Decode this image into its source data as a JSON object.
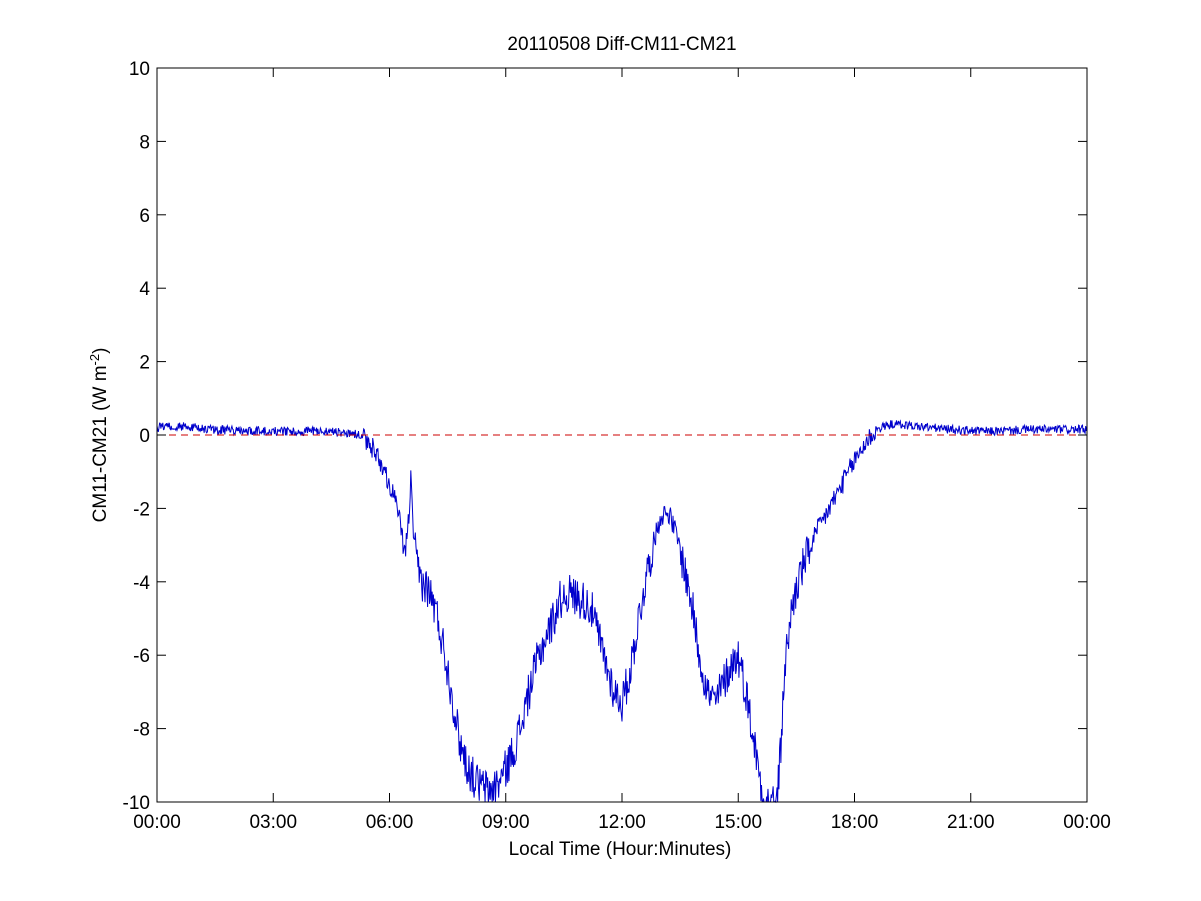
{
  "chart_data": {
    "type": "line",
    "title": "20110508 Diff-CM11-CM21",
    "xlabel": "Local Time (Hour:Minutes)",
    "ylabel": {
      "prefix": "CM11-CM21 (W m",
      "exponent": "-2",
      "suffix": ")"
    },
    "xlim": [
      0,
      24
    ],
    "ylim": [
      -10,
      10
    ],
    "x_units": "hours of local time",
    "xticks": [
      0,
      3,
      6,
      9,
      12,
      15,
      18,
      21,
      24
    ],
    "xtick_labels": [
      "00:00",
      "03:00",
      "06:00",
      "09:00",
      "12:00",
      "15:00",
      "18:00",
      "21:00",
      "00:00"
    ],
    "yticks": [
      -10,
      -8,
      -6,
      -4,
      -2,
      0,
      2,
      4,
      6,
      8,
      10
    ],
    "ytick_labels": [
      "-10",
      "-8",
      "-6",
      "-4",
      "-2",
      "0",
      "2",
      "4",
      "6",
      "8",
      "10"
    ],
    "grid": false,
    "box": true,
    "series": [
      {
        "color": "#0000cc",
        "style": "solid",
        "x": [
          0.0,
          0.5,
          1.0,
          1.5,
          2.0,
          2.5,
          3.0,
          3.5,
          4.0,
          4.5,
          5.0,
          5.2,
          5.4,
          5.6,
          5.8,
          6.0,
          6.1,
          6.2,
          6.3,
          6.4,
          6.5,
          6.55,
          6.6,
          6.7,
          6.8,
          6.9,
          7.0,
          7.2,
          7.4,
          7.6,
          7.8,
          8.0,
          8.2,
          8.4,
          8.6,
          8.8,
          9.0,
          9.2,
          9.4,
          9.6,
          9.8,
          10.0,
          10.2,
          10.4,
          10.6,
          10.8,
          11.0,
          11.2,
          11.4,
          11.6,
          11.8,
          12.0,
          12.2,
          12.4,
          12.6,
          12.8,
          13.0,
          13.2,
          13.4,
          13.6,
          13.8,
          14.0,
          14.2,
          14.4,
          14.6,
          14.8,
          15.0,
          15.2,
          15.4,
          15.6,
          15.7,
          15.8,
          15.9,
          16.0,
          16.1,
          16.2,
          16.4,
          16.6,
          16.8,
          17.0,
          17.2,
          17.4,
          17.6,
          17.8,
          18.0,
          18.2,
          18.4,
          18.6,
          18.8,
          19.0,
          19.5,
          20.0,
          20.5,
          21.0,
          21.5,
          22.0,
          22.5,
          23.0,
          23.5,
          24.0
        ],
        "y": [
          0.2,
          0.25,
          0.2,
          0.15,
          0.12,
          0.12,
          0.1,
          0.1,
          0.1,
          0.1,
          0.05,
          0.0,
          -0.2,
          -0.4,
          -0.8,
          -1.3,
          -1.6,
          -2.0,
          -2.6,
          -3.3,
          -2.2,
          -1.2,
          -2.4,
          -3.6,
          -3.9,
          -4.1,
          -4.2,
          -4.8,
          -5.8,
          -7.0,
          -8.3,
          -9.0,
          -9.4,
          -9.6,
          -9.7,
          -9.5,
          -9.1,
          -8.6,
          -7.9,
          -7.0,
          -6.2,
          -5.6,
          -5.1,
          -4.5,
          -4.3,
          -4.4,
          -4.5,
          -4.7,
          -5.5,
          -6.3,
          -7.0,
          -7.3,
          -6.5,
          -5.2,
          -4.0,
          -3.0,
          -2.2,
          -2.1,
          -2.7,
          -3.6,
          -4.6,
          -6.0,
          -7.0,
          -7.3,
          -6.8,
          -6.3,
          -6.0,
          -7.0,
          -8.3,
          -9.6,
          -10.0,
          -10.0,
          -10.0,
          -10.0,
          -8.5,
          -6.3,
          -4.6,
          -3.8,
          -3.2,
          -2.7,
          -2.3,
          -1.9,
          -1.5,
          -1.1,
          -0.7,
          -0.35,
          -0.05,
          0.15,
          0.25,
          0.3,
          0.25,
          0.2,
          0.15,
          0.12,
          0.1,
          0.12,
          0.15,
          0.15,
          0.15,
          0.15
        ]
      },
      {
        "color": "#cc0000",
        "style": "dashed",
        "x": [
          0,
          24
        ],
        "y": [
          0,
          0
        ]
      }
    ]
  }
}
